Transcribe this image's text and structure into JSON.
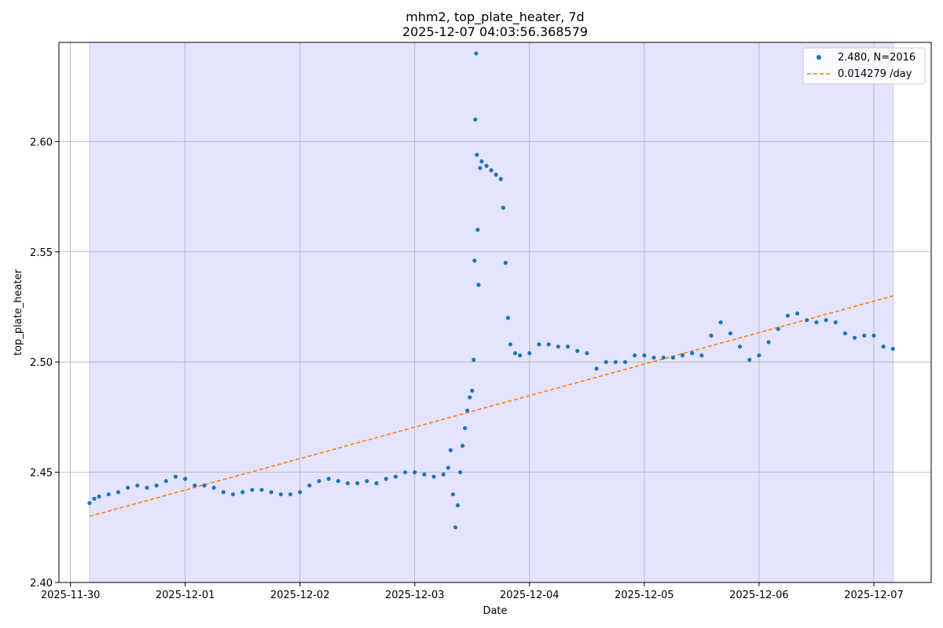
{
  "chart_data": {
    "type": "scatter",
    "title": "mhm2, top_plate_heater, 7d",
    "subtitle": "2025-12-07 04:03:56.368579",
    "xlabel": "Date",
    "ylabel": "top_plate_heater",
    "x_ticks": [
      "2025-11-30",
      "2025-12-01",
      "2025-12-02",
      "2025-12-03",
      "2025-12-04",
      "2025-12-05",
      "2025-12-06",
      "2025-12-07"
    ],
    "y_ticks": [
      "2.40",
      "2.45",
      "2.50",
      "2.55",
      "2.60"
    ],
    "xlim": [
      "2025-11-29T21:36",
      "2025-12-07T12:00"
    ],
    "ylim": [
      2.4,
      2.645
    ],
    "shaded_range": [
      "2025-11-30T04:00",
      "2025-12-07T04:04"
    ],
    "grid": true,
    "legend_position": "top-right",
    "colors": {
      "points": "#1f77b4",
      "trend": "#ff7f0e",
      "shade": "#e4e4ff"
    },
    "series": [
      {
        "name": "2.480, N=2016",
        "kind": "points",
        "points": [
          [
            "2025-11-30T04:00",
            2.436
          ],
          [
            "2025-11-30T05:00",
            2.438
          ],
          [
            "2025-11-30T06:00",
            2.439
          ],
          [
            "2025-11-30T08:00",
            2.44
          ],
          [
            "2025-11-30T10:00",
            2.441
          ],
          [
            "2025-11-30T12:00",
            2.443
          ],
          [
            "2025-11-30T14:00",
            2.444
          ],
          [
            "2025-11-30T16:00",
            2.443
          ],
          [
            "2025-11-30T18:00",
            2.444
          ],
          [
            "2025-11-30T20:00",
            2.446
          ],
          [
            "2025-11-30T22:00",
            2.448
          ],
          [
            "2025-12-01T00:00",
            2.447
          ],
          [
            "2025-12-01T02:00",
            2.444
          ],
          [
            "2025-12-01T04:00",
            2.444
          ],
          [
            "2025-12-01T06:00",
            2.443
          ],
          [
            "2025-12-01T08:00",
            2.441
          ],
          [
            "2025-12-01T10:00",
            2.44
          ],
          [
            "2025-12-01T12:00",
            2.441
          ],
          [
            "2025-12-01T14:00",
            2.442
          ],
          [
            "2025-12-01T16:00",
            2.442
          ],
          [
            "2025-12-01T18:00",
            2.441
          ],
          [
            "2025-12-01T20:00",
            2.44
          ],
          [
            "2025-12-01T22:00",
            2.44
          ],
          [
            "2025-12-02T00:00",
            2.441
          ],
          [
            "2025-12-02T02:00",
            2.444
          ],
          [
            "2025-12-02T04:00",
            2.446
          ],
          [
            "2025-12-02T06:00",
            2.447
          ],
          [
            "2025-12-02T08:00",
            2.446
          ],
          [
            "2025-12-02T10:00",
            2.445
          ],
          [
            "2025-12-02T12:00",
            2.445
          ],
          [
            "2025-12-02T14:00",
            2.446
          ],
          [
            "2025-12-02T16:00",
            2.445
          ],
          [
            "2025-12-02T18:00",
            2.447
          ],
          [
            "2025-12-02T20:00",
            2.448
          ],
          [
            "2025-12-02T22:00",
            2.45
          ],
          [
            "2025-12-03T00:00",
            2.45
          ],
          [
            "2025-12-03T02:00",
            2.449
          ],
          [
            "2025-12-03T04:00",
            2.448
          ],
          [
            "2025-12-03T06:00",
            2.449
          ],
          [
            "2025-12-03T07:00",
            2.452
          ],
          [
            "2025-12-03T07:30",
            2.46
          ],
          [
            "2025-12-03T08:00",
            2.44
          ],
          [
            "2025-12-03T08:30",
            2.425
          ],
          [
            "2025-12-03T09:00",
            2.435
          ],
          [
            "2025-12-03T09:30",
            2.45
          ],
          [
            "2025-12-03T10:00",
            2.462
          ],
          [
            "2025-12-03T10:30",
            2.47
          ],
          [
            "2025-12-03T11:00",
            2.478
          ],
          [
            "2025-12-03T11:30",
            2.484
          ],
          [
            "2025-12-03T12:00",
            2.487
          ],
          [
            "2025-12-03T12:20",
            2.501
          ],
          [
            "2025-12-03T12:30",
            2.546
          ],
          [
            "2025-12-03T12:40",
            2.61
          ],
          [
            "2025-12-03T12:50",
            2.64
          ],
          [
            "2025-12-03T13:00",
            2.594
          ],
          [
            "2025-12-03T13:10",
            2.56
          ],
          [
            "2025-12-03T13:20",
            2.535
          ],
          [
            "2025-12-03T13:40",
            2.588
          ],
          [
            "2025-12-03T14:00",
            2.591
          ],
          [
            "2025-12-03T15:00",
            2.589
          ],
          [
            "2025-12-03T16:00",
            2.587
          ],
          [
            "2025-12-03T17:00",
            2.585
          ],
          [
            "2025-12-03T18:00",
            2.583
          ],
          [
            "2025-12-03T18:30",
            2.57
          ],
          [
            "2025-12-03T19:00",
            2.545
          ],
          [
            "2025-12-03T19:30",
            2.52
          ],
          [
            "2025-12-03T20:00",
            2.508
          ],
          [
            "2025-12-03T21:00",
            2.504
          ],
          [
            "2025-12-03T22:00",
            2.503
          ],
          [
            "2025-12-04T00:00",
            2.504
          ],
          [
            "2025-12-04T02:00",
            2.508
          ],
          [
            "2025-12-04T04:00",
            2.508
          ],
          [
            "2025-12-04T06:00",
            2.507
          ],
          [
            "2025-12-04T08:00",
            2.507
          ],
          [
            "2025-12-04T10:00",
            2.505
          ],
          [
            "2025-12-04T12:00",
            2.504
          ],
          [
            "2025-12-04T14:00",
            2.497
          ],
          [
            "2025-12-04T16:00",
            2.5
          ],
          [
            "2025-12-04T18:00",
            2.5
          ],
          [
            "2025-12-04T20:00",
            2.5
          ],
          [
            "2025-12-04T22:00",
            2.503
          ],
          [
            "2025-12-05T00:00",
            2.503
          ],
          [
            "2025-12-05T02:00",
            2.502
          ],
          [
            "2025-12-05T04:00",
            2.502
          ],
          [
            "2025-12-05T06:00",
            2.502
          ],
          [
            "2025-12-05T08:00",
            2.503
          ],
          [
            "2025-12-05T10:00",
            2.504
          ],
          [
            "2025-12-05T12:00",
            2.503
          ],
          [
            "2025-12-05T14:00",
            2.512
          ],
          [
            "2025-12-05T16:00",
            2.518
          ],
          [
            "2025-12-05T18:00",
            2.513
          ],
          [
            "2025-12-05T20:00",
            2.507
          ],
          [
            "2025-12-05T22:00",
            2.501
          ],
          [
            "2025-12-06T00:00",
            2.503
          ],
          [
            "2025-12-06T02:00",
            2.509
          ],
          [
            "2025-12-06T04:00",
            2.515
          ],
          [
            "2025-12-06T06:00",
            2.521
          ],
          [
            "2025-12-06T08:00",
            2.522
          ],
          [
            "2025-12-06T10:00",
            2.519
          ],
          [
            "2025-12-06T12:00",
            2.518
          ],
          [
            "2025-12-06T14:00",
            2.519
          ],
          [
            "2025-12-06T16:00",
            2.518
          ],
          [
            "2025-12-06T18:00",
            2.513
          ],
          [
            "2025-12-06T20:00",
            2.511
          ],
          [
            "2025-12-06T22:00",
            2.512
          ],
          [
            "2025-12-07T00:00",
            2.512
          ],
          [
            "2025-12-07T02:00",
            2.507
          ],
          [
            "2025-12-07T04:00",
            2.506
          ]
        ]
      },
      {
        "name": "0.014279 /day",
        "kind": "trend",
        "points": [
          [
            "2025-11-30T04:00",
            2.43
          ],
          [
            "2025-12-07T04:00",
            2.53
          ]
        ]
      }
    ]
  }
}
